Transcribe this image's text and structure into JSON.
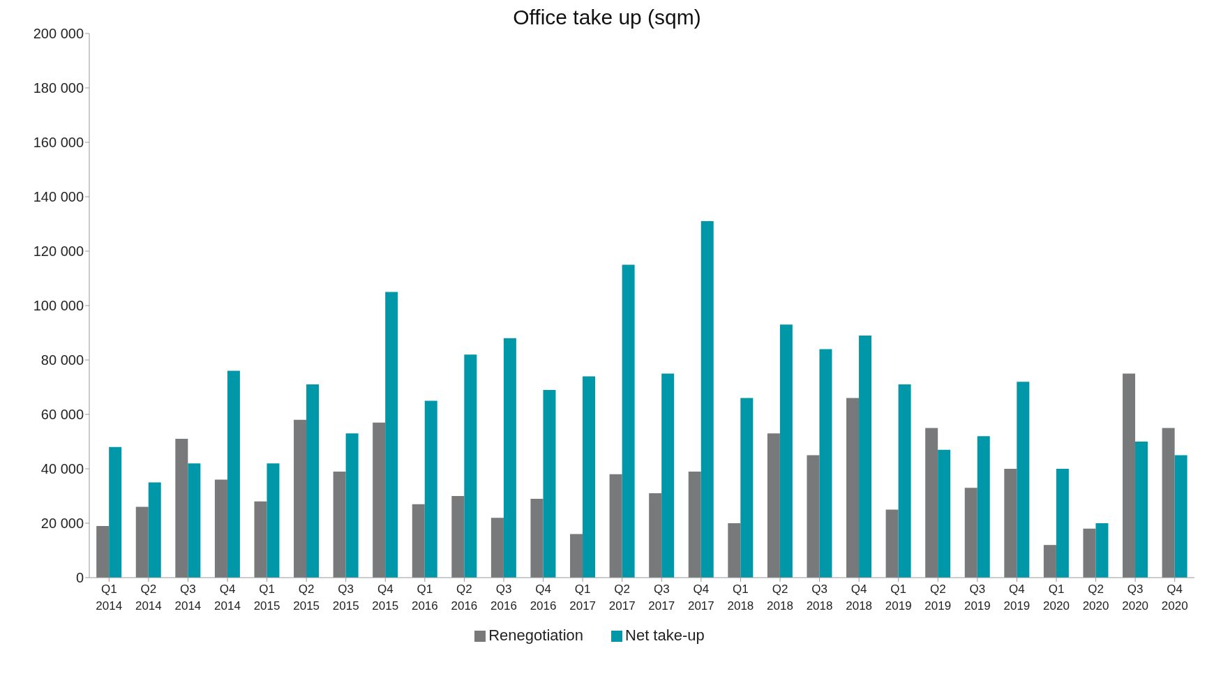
{
  "chart_data": {
    "type": "bar",
    "title": "Office take up (sqm)",
    "categories": [
      "Q1\n2014",
      "Q2\n2014",
      "Q3\n2014",
      "Q4\n2014",
      "Q1\n2015",
      "Q2\n2015",
      "Q3\n2015",
      "Q4\n2015",
      "Q1\n2016",
      "Q2\n2016",
      "Q3\n2016",
      "Q4\n2016",
      "Q1\n2017",
      "Q2\n2017",
      "Q3\n2017",
      "Q4\n2017",
      "Q1\n2018",
      "Q2\n2018",
      "Q3\n2018",
      "Q4\n2018",
      "Q1\n2019",
      "Q2\n2019",
      "Q3\n2019",
      "Q4\n2019",
      "Q1\n2020",
      "Q2\n2020",
      "Q3\n2020",
      "Q4\n2020"
    ],
    "series": [
      {
        "name": "Renegotiation",
        "color": "#77797b",
        "values": [
          19000,
          26000,
          51000,
          36000,
          28000,
          58000,
          39000,
          57000,
          27000,
          30000,
          22000,
          29000,
          16000,
          38000,
          31000,
          39000,
          20000,
          53000,
          45000,
          66000,
          25000,
          55000,
          33000,
          40000,
          12000,
          18000,
          75000,
          55000
        ]
      },
      {
        "name": "Net take-up",
        "color": "#0098a8",
        "values": [
          48000,
          35000,
          42000,
          76000,
          42000,
          71000,
          53000,
          105000,
          65000,
          82000,
          88000,
          69000,
          74000,
          115000,
          75000,
          131000,
          66000,
          93000,
          84000,
          89000,
          71000,
          47000,
          52000,
          72000,
          40000,
          20000,
          50000,
          45000
        ]
      }
    ],
    "ylim": [
      0,
      200000
    ],
    "yticks": [
      {
        "value": 0,
        "label": "0"
      },
      {
        "value": 20000,
        "label": "20 000"
      },
      {
        "value": 40000,
        "label": "40 000"
      },
      {
        "value": 60000,
        "label": "60 000"
      },
      {
        "value": 80000,
        "label": "80 000"
      },
      {
        "value": 100000,
        "label": "100 000"
      },
      {
        "value": 120000,
        "label": "120 000"
      },
      {
        "value": 140000,
        "label": "140 000"
      },
      {
        "value": 160000,
        "label": "160 000"
      },
      {
        "value": 180000,
        "label": "180 000"
      },
      {
        "value": 200000,
        "label": "200 000"
      }
    ],
    "grid": false,
    "legend": "bottom"
  }
}
